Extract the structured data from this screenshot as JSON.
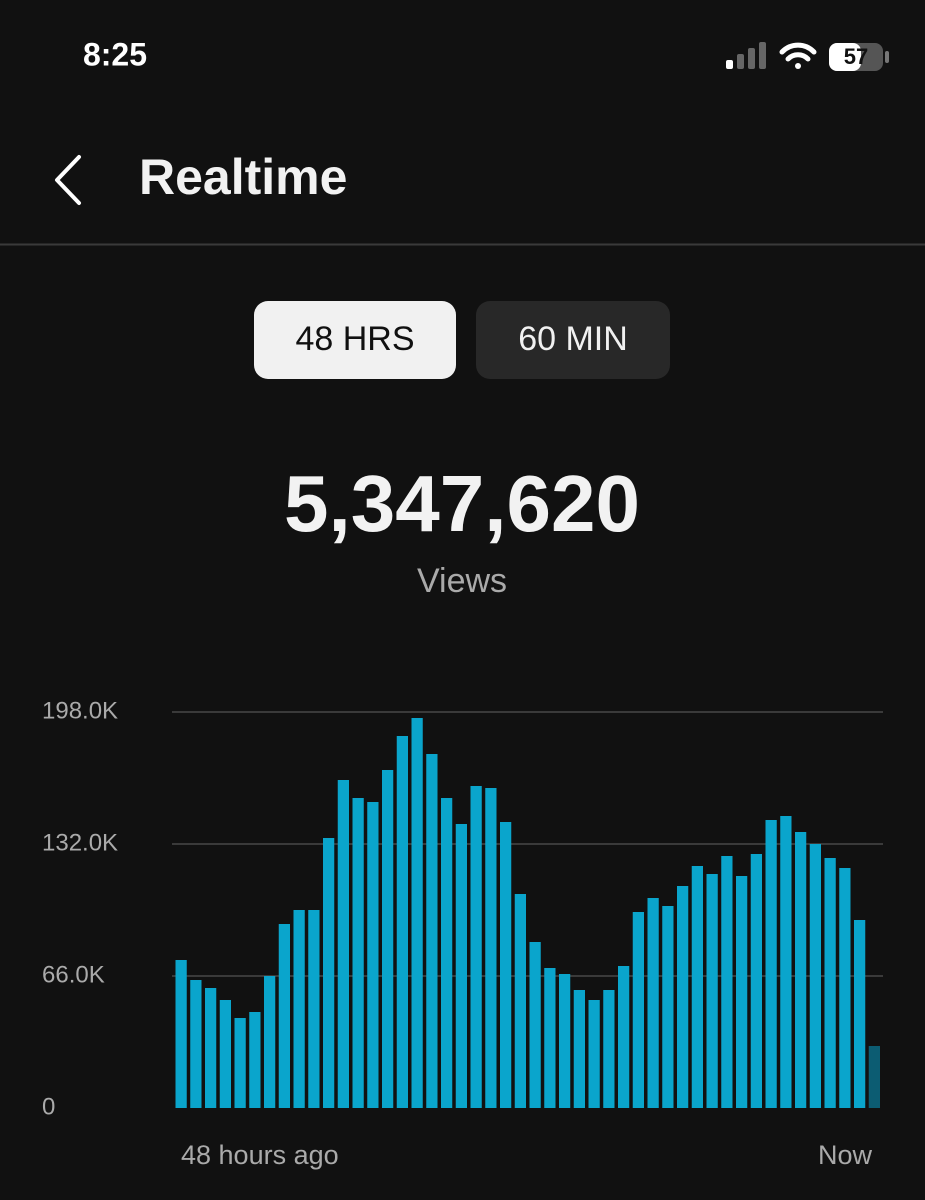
{
  "status_bar": {
    "time": "8:25",
    "battery": "57"
  },
  "header": {
    "title": "Realtime"
  },
  "tabs": {
    "items": [
      "48 HRS",
      "60 MIN"
    ],
    "selected": 0
  },
  "summary": {
    "total": "5,347,620",
    "label": "Views"
  },
  "chart_data": {
    "type": "bar",
    "categories": [
      "48 hours ago",
      null,
      null,
      null,
      null,
      null,
      null,
      null,
      null,
      null,
      null,
      null,
      null,
      null,
      null,
      null,
      null,
      null,
      null,
      null,
      null,
      null,
      null,
      null,
      null,
      null,
      null,
      null,
      null,
      null,
      null,
      null,
      null,
      null,
      null,
      null,
      null,
      null,
      null,
      null,
      null,
      null,
      null,
      null,
      null,
      null,
      null,
      "Now"
    ],
    "values": [
      74,
      64,
      60,
      54,
      45,
      48,
      66,
      92,
      99,
      99,
      135,
      164,
      155,
      153,
      169,
      186,
      195,
      177,
      155,
      142,
      161,
      160,
      143,
      107,
      83,
      70,
      67,
      59,
      54,
      59,
      71,
      98,
      105,
      101,
      111,
      121,
      117,
      126,
      116,
      127,
      144,
      146,
      138,
      132,
      125,
      120,
      94,
      31
    ],
    "color": "#0aa5cc",
    "last_color": "#0c5c72",
    "ylim": [
      0,
      198
    ],
    "yticks": [
      0,
      {
        "value": 66,
        "label": "66.0K"
      },
      {
        "value": 132,
        "label": "132.0K"
      },
      {
        "value": 198,
        "label": "198.0K"
      }
    ],
    "grid": true
  }
}
